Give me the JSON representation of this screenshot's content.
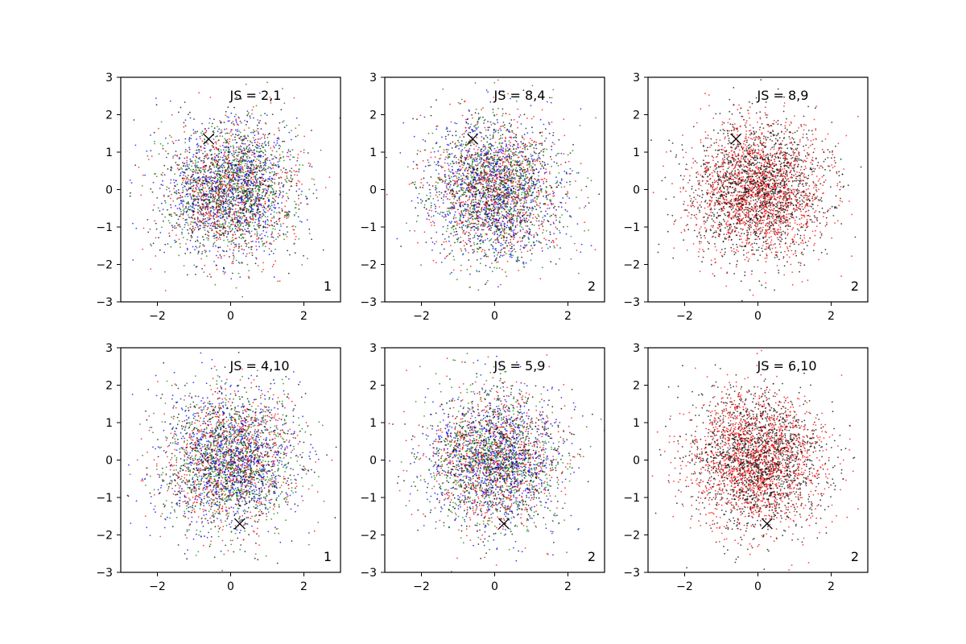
{
  "chart_data": [
    {
      "type": "scatter",
      "annotation": "JS = 2,1",
      "corner_label": "1",
      "xlim": [
        -3,
        3
      ],
      "ylim": [
        -3,
        3
      ],
      "xticks": [
        "−2",
        "0",
        "2"
      ],
      "yticks": [
        "−3",
        "−2",
        "−1",
        "0",
        "1",
        "2",
        "3"
      ],
      "marker": {
        "shape": "x",
        "x": -0.6,
        "y": 1.35
      },
      "series_colors": [
        "#0000ff",
        "#008000",
        "#ff0000",
        "#000000"
      ],
      "grid": false
    },
    {
      "type": "scatter",
      "annotation": "JS = 8,4",
      "corner_label": "2",
      "xlim": [
        -3,
        3
      ],
      "ylim": [
        -3,
        3
      ],
      "xticks": [
        "−2",
        "0",
        "2"
      ],
      "yticks": [
        "−3",
        "−2",
        "−1",
        "0",
        "1",
        "2",
        "3"
      ],
      "marker": {
        "shape": "x",
        "x": -0.6,
        "y": 1.35
      },
      "series_colors": [
        "#0000ff",
        "#008000",
        "#ff0000",
        "#000000"
      ],
      "grid": false
    },
    {
      "type": "scatter",
      "annotation": "JS = 8,9",
      "corner_label": "2",
      "xlim": [
        -3,
        3
      ],
      "ylim": [
        -3,
        3
      ],
      "xticks": [
        "−2",
        "0",
        "2"
      ],
      "yticks": [
        "−3",
        "−2",
        "−1",
        "0",
        "1",
        "2",
        "3"
      ],
      "marker": {
        "shape": "x",
        "x": -0.6,
        "y": 1.35
      },
      "series_colors": [
        "#ff0000",
        "#000000"
      ],
      "grid": false
    },
    {
      "type": "scatter",
      "annotation": "JS = 4,10",
      "corner_label": "1",
      "xlim": [
        -3,
        3
      ],
      "ylim": [
        -3,
        3
      ],
      "xticks": [
        "−2",
        "0",
        "2"
      ],
      "yticks": [
        "−3",
        "−2",
        "−1",
        "0",
        "1",
        "2",
        "3"
      ],
      "marker": {
        "shape": "x",
        "x": 0.25,
        "y": -1.7
      },
      "series_colors": [
        "#0000ff",
        "#008000",
        "#ff0000",
        "#000000"
      ],
      "grid": false
    },
    {
      "type": "scatter",
      "annotation": "JS = 5,9",
      "corner_label": "2",
      "xlim": [
        -3,
        3
      ],
      "ylim": [
        -3,
        3
      ],
      "xticks": [
        "−2",
        "0",
        "2"
      ],
      "yticks": [
        "−3",
        "−2",
        "−1",
        "0",
        "1",
        "2",
        "3"
      ],
      "marker": {
        "shape": "x",
        "x": 0.25,
        "y": -1.7
      },
      "series_colors": [
        "#0000ff",
        "#008000",
        "#ff0000",
        "#000000"
      ],
      "grid": false
    },
    {
      "type": "scatter",
      "annotation": "JS = 6,10",
      "corner_label": "2",
      "xlim": [
        -3,
        3
      ],
      "ylim": [
        -3,
        3
      ],
      "xticks": [
        "−2",
        "0",
        "2"
      ],
      "yticks": [
        "−3",
        "−2",
        "−1",
        "0",
        "1",
        "2",
        "3"
      ],
      "marker": {
        "shape": "x",
        "x": 0.25,
        "y": -1.7
      },
      "series_colors": [
        "#ff0000",
        "#000000"
      ],
      "grid": false
    }
  ]
}
